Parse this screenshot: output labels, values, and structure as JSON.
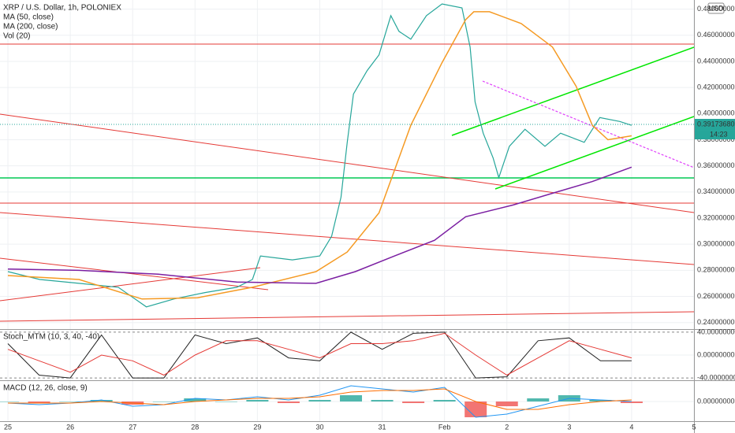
{
  "chart_data": [
    {
      "type": "line",
      "title": "XRP / U.S. Dollar, 1h, POLONIEX",
      "labels": [
        "MA (50, close)",
        "MA (200, close)",
        "Vol (20)"
      ],
      "currency": "USD",
      "last_price": {
        "value": 0.3917368,
        "label": "0.39173680"
      },
      "countdown": "14:23",
      "xlim": [
        -0.127,
        11.0
      ],
      "xticks": [
        {
          "value": 0,
          "label": "25"
        },
        {
          "value": 1,
          "label": "26"
        },
        {
          "value": 2,
          "label": "27"
        },
        {
          "value": 3,
          "label": "28"
        },
        {
          "value": 4,
          "label": "29"
        },
        {
          "value": 5,
          "label": "30"
        },
        {
          "value": 6,
          "label": "31"
        },
        {
          "value": 7,
          "label": "Feb"
        },
        {
          "value": 8,
          "label": "2"
        },
        {
          "value": 9,
          "label": "3"
        },
        {
          "value": 10,
          "label": "4"
        },
        {
          "value": 11,
          "label": "5"
        }
      ],
      "ylim": [
        0.235,
        0.487
      ],
      "yticks": [
        {
          "value": 0.24,
          "label": "0.24000000"
        },
        {
          "value": 0.26,
          "label": "0.26000000"
        },
        {
          "value": 0.28,
          "label": "0.28000000"
        },
        {
          "value": 0.3,
          "label": "0.30000000"
        },
        {
          "value": 0.32,
          "label": "0.32000000"
        },
        {
          "value": 0.34,
          "label": "0.34000000"
        },
        {
          "value": 0.36,
          "label": "0.36000000"
        },
        {
          "value": 0.38,
          "label": "0.38000000"
        },
        {
          "value": 0.4,
          "label": "0.40000000"
        },
        {
          "value": 0.42,
          "label": "0.42000000"
        },
        {
          "value": 0.44,
          "label": "0.44000000"
        },
        {
          "value": 0.46,
          "label": "0.46000000"
        },
        {
          "value": 0.48,
          "label": "0.48000000"
        }
      ],
      "grid": true,
      "series": [
        {
          "color": "#26a69a",
          "x": [
            0,
            0.51,
            1.14,
            1.77,
            2.22,
            2.66,
            3.16,
            3.67,
            3.92,
            4.05,
            4.56,
            5.0,
            5.19,
            5.34,
            5.44,
            5.54,
            5.76,
            5.95,
            6.14,
            6.27,
            6.46,
            6.71,
            6.96,
            7.28,
            7.41,
            7.49,
            7.62,
            7.78,
            7.87,
            8.04,
            8.29,
            8.61,
            8.86,
            9.24,
            9.49,
            9.81,
            10.0
          ],
          "values": [
            0.279,
            0.273,
            0.27,
            0.267,
            0.252,
            0.258,
            0.263,
            0.267,
            0.273,
            0.291,
            0.288,
            0.291,
            0.306,
            0.336,
            0.378,
            0.415,
            0.433,
            0.445,
            0.475,
            0.463,
            0.457,
            0.475,
            0.484,
            0.481,
            0.451,
            0.409,
            0.385,
            0.366,
            0.351,
            0.375,
            0.388,
            0.375,
            0.385,
            0.378,
            0.397,
            0.394,
            0.391
          ]
        },
        {
          "name": "MA (50, close)",
          "color": "#f59a23",
          "x": [
            0,
            1.14,
            2.15,
            3.04,
            3.92,
            4.94,
            5.44,
            5.95,
            6.46,
            6.96,
            7.34,
            7.47,
            7.72,
            8.23,
            8.73,
            9.11,
            9.37,
            9.62,
            10.0
          ],
          "values": [
            0.276,
            0.273,
            0.258,
            0.259,
            0.267,
            0.279,
            0.294,
            0.324,
            0.391,
            0.439,
            0.472,
            0.478,
            0.478,
            0.469,
            0.451,
            0.421,
            0.391,
            0.38,
            0.383
          ]
        },
        {
          "name": "MA (200, close)",
          "color": "#7b1fa2",
          "x": [
            0,
            1.14,
            2.41,
            3.67,
            4.94,
            5.57,
            6.2,
            6.84,
            7.34,
            8.1,
            8.73,
            9.37,
            10.0
          ],
          "values": [
            0.281,
            0.28,
            0.277,
            0.271,
            0.27,
            0.279,
            0.291,
            0.303,
            0.321,
            0.33,
            0.339,
            0.348,
            0.359
          ]
        }
      ]
    },
    {
      "type": "line",
      "title": "Stoch_MTM (10, 3, 40, -40)",
      "ylim": [
        -44,
        44
      ],
      "yticks": [
        {
          "value": 40,
          "label": "40.00000000"
        },
        {
          "value": 0,
          "label": "0.00000000"
        },
        {
          "value": -40,
          "label": "-40.00000000"
        }
      ],
      "x": [
        0,
        0.5,
        1,
        1.5,
        2,
        2.5,
        3,
        3.5,
        4,
        4.5,
        5,
        5.5,
        6,
        6.5,
        7,
        7.5,
        8,
        8.5,
        9,
        9.5,
        10
      ],
      "series": [
        {
          "color": "#222222",
          "values": [
            20,
            -35,
            -40,
            35,
            -40,
            -40,
            35,
            20,
            30,
            -5,
            -10,
            40,
            10,
            38,
            40,
            -40,
            -38,
            25,
            30,
            -10,
            -10
          ]
        },
        {
          "color": "#e53935",
          "values": [
            10,
            -10,
            -30,
            0,
            -10,
            -35,
            0,
            25,
            25,
            10,
            -5,
            20,
            20,
            25,
            38,
            0,
            -35,
            -5,
            25,
            10,
            -5
          ]
        }
      ]
    },
    {
      "type": "bar",
      "title": "MACD (12, 26, close, 9)",
      "ylim": [
        -0.012,
        0.012
      ],
      "yticks": [
        {
          "value": 0,
          "label": "0.00000000"
        }
      ],
      "x": [
        0,
        0.5,
        1,
        1.5,
        2,
        2.5,
        3,
        3.5,
        4,
        4.5,
        5,
        5.5,
        6,
        6.5,
        7,
        7.5,
        8,
        8.5,
        9,
        9.5,
        10
      ],
      "values": [
        0,
        -0.001,
        0,
        0.001,
        -0.002,
        0,
        0.002,
        0,
        0.001,
        -0.001,
        0.001,
        0.004,
        0.001,
        -0.001,
        0.001,
        -0.01,
        -0.003,
        0.002,
        0.004,
        0.001,
        -0.001
      ],
      "up_color": "#26a69a",
      "down_color": "#ef5350",
      "series": [
        {
          "color": "#2196f3",
          "values": [
            -0.001,
            -0.002,
            -0.001,
            0.001,
            -0.003,
            -0.002,
            0.002,
            0.001,
            0.003,
            0.001,
            0.004,
            0.01,
            0.008,
            0.006,
            0.009,
            -0.01,
            -0.008,
            -0.003,
            0.002,
            0.001,
            0
          ]
        },
        {
          "color": "#ff6d00",
          "values": [
            -0.001,
            -0.001,
            -0.001,
            0,
            -0.001,
            -0.002,
            0,
            0.001,
            0.002,
            0.002,
            0.003,
            0.006,
            0.007,
            0.007,
            0.008,
            0,
            -0.005,
            -0.005,
            -0.002,
            0,
            0.001
          ]
        }
      ]
    }
  ]
}
